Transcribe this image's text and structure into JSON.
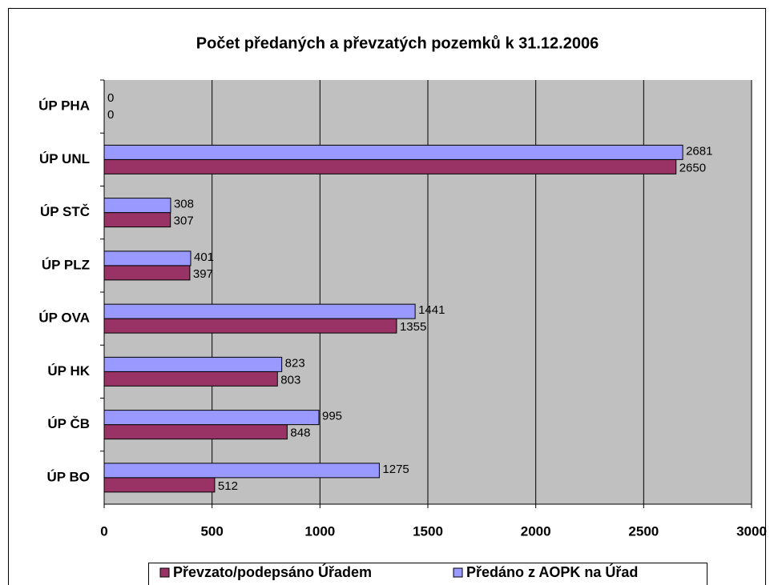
{
  "chart_data": {
    "type": "bar",
    "orientation": "horizontal",
    "title": "Počet předaných a převzatých pozemků k 31.12.2006",
    "categories": [
      "ÚP PHA",
      "ÚP UNL",
      "ÚP STČ",
      "ÚP PLZ",
      "ÚP OVA",
      "ÚP HK",
      "ÚP ČB",
      "ÚP BO"
    ],
    "series": [
      {
        "name": "Převzato/podepsáno Úřadem",
        "color": "#993366",
        "values": [
          0,
          2650,
          307,
          397,
          1355,
          803,
          848,
          512
        ]
      },
      {
        "name": "Předáno z AOPK na Úřad",
        "color": "#9999ff",
        "values": [
          0,
          2681,
          308,
          401,
          1441,
          823,
          995,
          1275
        ]
      }
    ],
    "xlim": [
      0,
      3000
    ],
    "xticks": [
      0,
      500,
      1000,
      1500,
      2000,
      2500,
      3000
    ],
    "grid": true,
    "legend": "bottom"
  }
}
